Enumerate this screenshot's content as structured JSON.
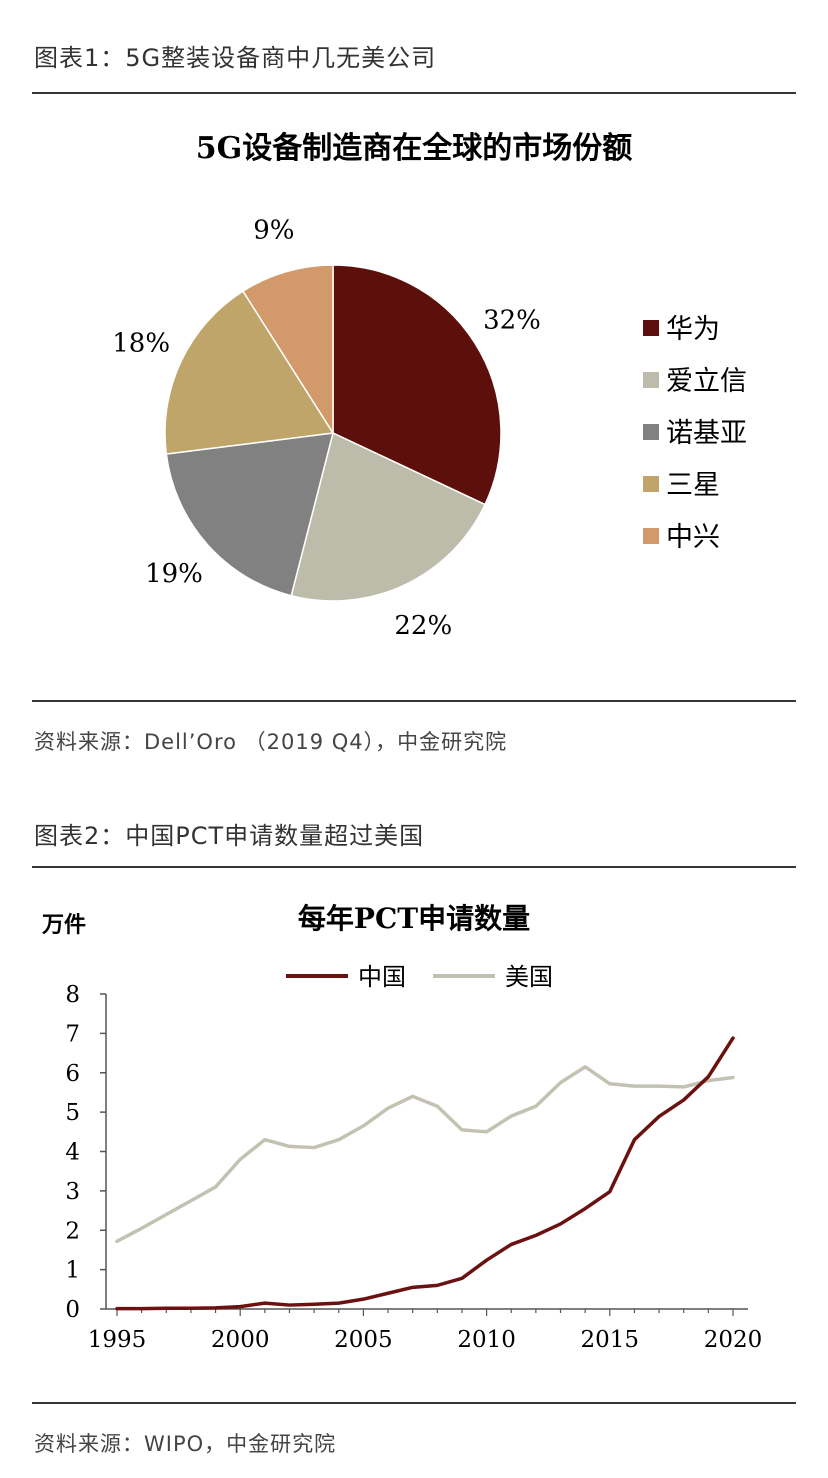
{
  "figure1": {
    "caption": "图表1：5G整装设备商中几无美公司",
    "source": "资料来源：Dell’Oro （2019 Q4），中金研究院",
    "chart_data": {
      "type": "pie",
      "title": "5G设备制造商在全球的市场份额",
      "labels": [
        "华为",
        "爱立信",
        "诺基亚",
        "三星",
        "中兴"
      ],
      "values": [
        32,
        22,
        19,
        18,
        9
      ],
      "value_labels": [
        "32%",
        "22%",
        "19%",
        "18%",
        "9%"
      ],
      "colors": [
        "#5c0f0b",
        "#bdbcaa",
        "#818181",
        "#bfa569",
        "#d29a6a"
      ],
      "legend_position": "right"
    }
  },
  "figure2": {
    "caption": "图表2：中国PCT申请数量超过美国",
    "source": "资料来源：WIPO，中金研究院",
    "chart_data": {
      "type": "line",
      "title": "每年PCT申请数量",
      "ylabel": "万件",
      "xlim": [
        1995,
        2020
      ],
      "ylim": [
        0,
        8
      ],
      "x_ticks": [
        1995,
        2000,
        2005,
        2010,
        2015,
        2020
      ],
      "y_ticks": [
        0,
        1,
        2,
        3,
        4,
        5,
        6,
        7,
        8
      ],
      "x": [
        1995,
        1996,
        1997,
        1998,
        1999,
        2000,
        2001,
        2002,
        2003,
        2004,
        2005,
        2006,
        2007,
        2008,
        2009,
        2010,
        2011,
        2012,
        2013,
        2014,
        2015,
        2016,
        2017,
        2018,
        2019,
        2020
      ],
      "series": [
        {
          "name": "中国",
          "color": "#6b1210",
          "values": [
            0.01,
            0.01,
            0.02,
            0.02,
            0.03,
            0.06,
            0.15,
            0.1,
            0.12,
            0.15,
            0.25,
            0.4,
            0.55,
            0.6,
            0.78,
            1.24,
            1.64,
            1.87,
            2.16,
            2.55,
            2.98,
            4.3,
            4.89,
            5.31,
            5.9,
            6.88
          ]
        },
        {
          "name": "美国",
          "color": "#c3c2b2",
          "values": [
            1.72,
            2.05,
            2.4,
            2.75,
            3.1,
            3.8,
            4.3,
            4.13,
            4.1,
            4.3,
            4.65,
            5.1,
            5.4,
            5.15,
            4.55,
            4.5,
            4.9,
            5.15,
            5.75,
            6.15,
            5.72,
            5.66,
            5.66,
            5.64,
            5.8,
            5.88
          ]
        }
      ],
      "legend_position": "top"
    }
  }
}
